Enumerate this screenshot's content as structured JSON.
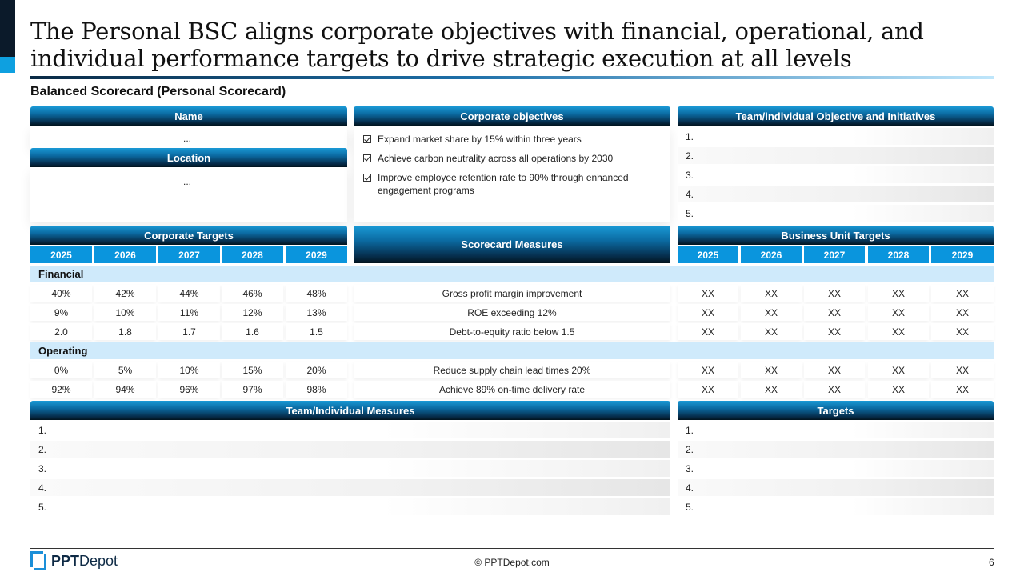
{
  "title": "The Personal BSC aligns corporate objectives with financial, operational, and individual performance targets to drive strategic execution at all levels",
  "subtitle": "Balanced Scorecard (Personal Scorecard)",
  "name_section": {
    "header": "Name",
    "value": "..."
  },
  "location_section": {
    "header": "Location",
    "value": "..."
  },
  "corporate_objectives": {
    "header": "Corporate objectives",
    "items": [
      "Expand market share by 15% within three years",
      "Achieve carbon neutrality across all operations by 2030",
      "Improve employee retention rate to 90% through enhanced engagement programs"
    ]
  },
  "team_objectives": {
    "header": "Team/individual Objective and Initiatives",
    "rows": [
      "1.",
      "2.",
      "3.",
      "4.",
      "5."
    ]
  },
  "corporate_targets": {
    "header": "Corporate Targets",
    "years": [
      "2025",
      "2026",
      "2027",
      "2028",
      "2029"
    ]
  },
  "scorecard_measures_header": "Scorecard Measures",
  "business_unit_targets": {
    "header": "Business Unit Targets",
    "years": [
      "2025",
      "2026",
      "2027",
      "2028",
      "2029"
    ]
  },
  "sections": [
    {
      "label": "Financial",
      "rows": [
        {
          "corporate": [
            "40%",
            "42%",
            "44%",
            "46%",
            "48%"
          ],
          "measure": "Gross profit margin improvement",
          "business": [
            "XX",
            "XX",
            "XX",
            "XX",
            "XX"
          ]
        },
        {
          "corporate": [
            "9%",
            "10%",
            "11%",
            "12%",
            "13%"
          ],
          "measure": "ROE exceeding 12%",
          "business": [
            "XX",
            "XX",
            "XX",
            "XX",
            "XX"
          ]
        },
        {
          "corporate": [
            "2.0",
            "1.8",
            "1.7",
            "1.6",
            "1.5"
          ],
          "measure": "Debt-to-equity ratio below 1.5",
          "business": [
            "XX",
            "XX",
            "XX",
            "XX",
            "XX"
          ]
        }
      ]
    },
    {
      "label": "Operating",
      "rows": [
        {
          "corporate": [
            "0%",
            "5%",
            "10%",
            "15%",
            "20%"
          ],
          "measure": "Reduce supply chain lead times 20%",
          "business": [
            "XX",
            "XX",
            "XX",
            "XX",
            "XX"
          ]
        },
        {
          "corporate": [
            "92%",
            "94%",
            "96%",
            "97%",
            "98%"
          ],
          "measure": "Achieve 89% on-time delivery rate",
          "business": [
            "XX",
            "XX",
            "XX",
            "XX",
            "XX"
          ]
        }
      ]
    }
  ],
  "team_measures": {
    "header": "Team/Individual Measures",
    "rows": [
      "1.",
      "2.",
      "3.",
      "4.",
      "5."
    ]
  },
  "targets": {
    "header": "Targets",
    "rows": [
      "1.",
      "2.",
      "3.",
      "4.",
      "5."
    ]
  },
  "footer": {
    "logo_bold": "PPT",
    "logo_light": "Depot",
    "copyright": "© PPTDepot.com",
    "page_number": "6"
  },
  "colors": {
    "header_dark": "#02141f",
    "header_blue": "#0b6aa1",
    "year_blue": "#0a95dd",
    "section_band": "#cfeafb",
    "accent_blue": "#0ea0e0"
  }
}
